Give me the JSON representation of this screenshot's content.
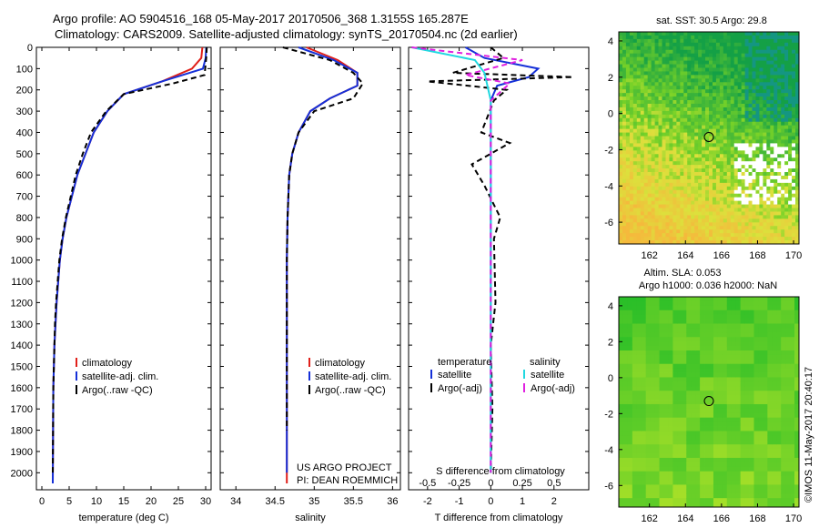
{
  "header": {
    "line1": "Argo profile: AO 5904516_168 05-May-2017 20170506_368 1.3155S 165.287E",
    "line2": "Climatology: CARS2009. Satellite-adjusted climatology: synTS_20170504.nc (2d earlier)"
  },
  "credit": "©IMOS 11-May-2017 20:40:17",
  "colors": {
    "climatology": "#e0201a",
    "satellite": "#1530d8",
    "argo": "#000000",
    "salinity_sat": "#20d8e0",
    "salinity_argo": "#e020e0"
  },
  "chart_data": [
    {
      "type": "line",
      "id": "temperature",
      "xlabel": "temperature (deg C)",
      "ylabel": "",
      "xlim": [
        -1,
        31
      ],
      "ylim": [
        2080,
        0
      ],
      "xticks": [
        0,
        5,
        10,
        15,
        20,
        25,
        30
      ],
      "yticks": [
        0,
        100,
        200,
        300,
        400,
        500,
        600,
        700,
        800,
        900,
        1000,
        1100,
        1200,
        1300,
        1400,
        1500,
        1600,
        1700,
        1800,
        1900,
        2000
      ],
      "legend": [
        "climatology",
        "satellite-adj. clim.",
        "Argo(..raw -QC)"
      ],
      "series": [
        {
          "name": "climatology",
          "color": "#e0201a",
          "x": [
            29.4,
            29.2,
            27.5,
            22,
            15,
            12,
            9.5,
            8,
            6.5,
            5.5,
            4.5,
            3.8,
            3.3,
            3,
            2.7,
            2.5,
            2.3,
            2.2,
            2.1,
            2.05,
            2
          ],
          "y": [
            0,
            50,
            100,
            160,
            220,
            300,
            400,
            500,
            600,
            700,
            800,
            900,
            1000,
            1100,
            1200,
            1300,
            1400,
            1500,
            1600,
            1800,
            2050
          ]
        },
        {
          "name": "satellite-adj. clim.",
          "color": "#1530d8",
          "x": [
            30.1,
            30,
            29.5,
            22,
            15,
            12,
            9.5,
            8,
            6.5,
            5.5,
            4.5,
            3.8,
            3.3,
            3,
            2.7,
            2.5,
            2.3,
            2.2,
            2.1,
            2.05,
            2
          ],
          "y": [
            0,
            50,
            100,
            160,
            220,
            300,
            400,
            500,
            600,
            700,
            800,
            900,
            1000,
            1100,
            1200,
            1300,
            1400,
            1500,
            1600,
            1800,
            2050
          ]
        },
        {
          "name": "Argo(..raw -QC)",
          "color": "#000000",
          "dashed": true,
          "x": [
            30.2,
            30.1,
            29.8,
            24,
            15,
            11.8,
            9,
            7.5,
            6.2,
            5.3,
            4.4,
            3.7,
            3.2,
            2.9,
            2.6,
            2.4,
            2.3,
            2.2,
            2.1,
            2.05,
            2
          ],
          "y": [
            0,
            50,
            130,
            170,
            220,
            300,
            400,
            500,
            600,
            700,
            800,
            900,
            1000,
            1100,
            1200,
            1300,
            1400,
            1500,
            1600,
            1800,
            2000
          ]
        }
      ]
    },
    {
      "type": "line",
      "id": "salinity",
      "xlabel": "salinity",
      "ylabel": "",
      "xlim": [
        33.8,
        36.1
      ],
      "ylim": [
        2080,
        0
      ],
      "xticks": [
        34,
        34.5,
        35,
        35.5,
        36
      ],
      "legend": [
        "climatology",
        "satellite-adj. clim.",
        "Argo(..raw -QC)"
      ],
      "annotation": [
        "US ARGO PROJECT",
        "PI: DEAN ROEMMICH"
      ],
      "series": [
        {
          "name": "climatology",
          "color": "#e0201a",
          "x": [
            34.9,
            35.3,
            35.55,
            35.55,
            35.2,
            34.95,
            34.8,
            34.72,
            34.68,
            34.66,
            34.65,
            34.65,
            34.65,
            34.65,
            34.65,
            34.65
          ],
          "y": [
            0,
            60,
            120,
            180,
            240,
            300,
            400,
            500,
            600,
            800,
            1000,
            1200,
            1400,
            1600,
            1800,
            2050
          ]
        },
        {
          "name": "satellite-adj. clim.",
          "color": "#1530d8",
          "x": [
            34.8,
            35.25,
            35.55,
            35.55,
            35.2,
            34.95,
            34.8,
            34.72,
            34.68,
            34.66,
            34.65,
            34.65,
            34.65,
            34.65,
            34.65,
            34.65
          ],
          "y": [
            0,
            60,
            120,
            180,
            240,
            300,
            400,
            500,
            600,
            800,
            1000,
            1200,
            1400,
            1600,
            1800,
            2000
          ]
        },
        {
          "name": "Argo(..raw -QC)",
          "color": "#000000",
          "dashed": true,
          "x": [
            34.6,
            35.2,
            35.5,
            35.62,
            35.5,
            35.0,
            34.8,
            34.72,
            34.68,
            34.66,
            34.65,
            34.65,
            34.65,
            34.65,
            34.65
          ],
          "y": [
            0,
            60,
            120,
            170,
            240,
            300,
            400,
            500,
            600,
            800,
            1000,
            1200,
            1400,
            1600,
            1800
          ]
        }
      ]
    },
    {
      "type": "line",
      "id": "difference",
      "xlabel": "T difference from climatology",
      "xlabel_top": "S difference from climatology",
      "xlim": [
        -2.6,
        3.1
      ],
      "ylim": [
        2080,
        0
      ],
      "xticks": [
        -2,
        -1,
        0,
        1,
        2
      ],
      "xticks_top": [
        -0.5,
        -0.25,
        0,
        0.25,
        0.5
      ],
      "legend_t_title": "temperature",
      "legend_s_title": "salinity",
      "legend": [
        "satellite",
        "Argo(-adj)",
        "satellite",
        "Argo(-adj)"
      ],
      "series": [
        {
          "name": "satellite",
          "color": "#1530d8",
          "x": [
            -0.8,
            -0.2,
            1.5,
            1.2,
            0.2,
            0,
            0,
            0,
            0,
            0,
            0
          ],
          "y": [
            0,
            50,
            100,
            140,
            180,
            250,
            400,
            700,
            1100,
            1500,
            2000
          ]
        },
        {
          "name": "Argo(-adj)",
          "color": "#000000",
          "dashed": true,
          "x": [
            0,
            0.4,
            -1.2,
            2.6,
            -2.0,
            0.5,
            0.1,
            -0.3,
            0.6,
            -0.6,
            -0.2,
            0.3,
            0.1,
            0.15,
            0,
            0.05,
            0
          ],
          "y": [
            0,
            50,
            120,
            140,
            160,
            200,
            250,
            400,
            450,
            550,
            650,
            800,
            900,
            1200,
            1400,
            1700,
            2000
          ]
        },
        {
          "name": "satellite",
          "color": "#20d8e0",
          "x": [
            -2.5,
            -0.5,
            -0.2,
            0,
            0,
            0,
            0
          ],
          "y": [
            0,
            60,
            120,
            250,
            500,
            1000,
            2000
          ]
        },
        {
          "name": "Argo(-adj)",
          "color": "#e020e0",
          "dashed": true,
          "x": [
            -2.5,
            1.0,
            -0.8,
            0.6,
            0,
            0,
            0
          ],
          "y": [
            0,
            60,
            130,
            170,
            250,
            1000,
            2000
          ]
        }
      ]
    },
    {
      "type": "heatmap",
      "id": "sst-map",
      "title": "sat. SST: 30.5 Argo: 29.8",
      "xlim": [
        160.3,
        170.3
      ],
      "ylim": [
        -7.2,
        4.5
      ],
      "xticks": [
        162,
        164,
        166,
        168,
        170
      ],
      "yticks": [
        -6,
        -4,
        -2,
        0,
        2,
        4
      ],
      "marker": {
        "x": 165.3,
        "y": -1.3
      }
    },
    {
      "type": "heatmap",
      "id": "sla-map",
      "title": "Altim. SLA: 0.053",
      "subtitle": "Argo h1000: 0.036 h2000: NaN",
      "xlim": [
        160.3,
        170.3
      ],
      "ylim": [
        -7.2,
        4.5
      ],
      "xticks": [
        162,
        164,
        166,
        168,
        170
      ],
      "yticks": [
        -6,
        -4,
        -2,
        0,
        2,
        4
      ],
      "marker": {
        "x": 165.3,
        "y": -1.3
      }
    }
  ]
}
